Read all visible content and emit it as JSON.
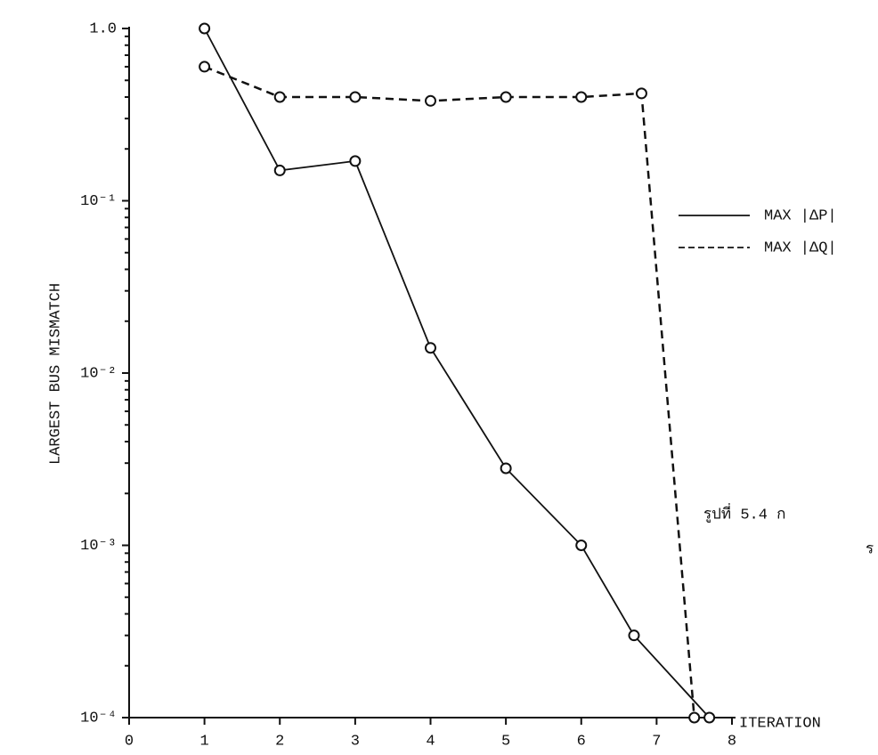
{
  "chart_data": {
    "type": "line",
    "x_label": "ITERATION",
    "y_label": "LARGEST BUS MISMATCH",
    "log_y": true,
    "xlim": [
      0,
      8
    ],
    "xticks": [
      0,
      1,
      2,
      3,
      4,
      5,
      6,
      7,
      8
    ],
    "ylim": [
      0.0001,
      1
    ],
    "yticks": [
      {
        "value": 0.0001,
        "label": "10⁻⁴"
      },
      {
        "value": 0.001,
        "label": "10⁻³"
      },
      {
        "value": 0.01,
        "label": "10⁻²"
      },
      {
        "value": 0.1,
        "label": "10⁻¹"
      },
      {
        "value": 1,
        "label": "1.0"
      }
    ],
    "series": [
      {
        "name": "MAX |ΔP|",
        "color": "#111111",
        "dash": "solid",
        "x": [
          1,
          2,
          3,
          4,
          5,
          6,
          6.7,
          7.7
        ],
        "values": [
          1,
          0.15,
          0.17,
          0.014,
          0.0028,
          0.001,
          0.0003,
          0.0001
        ]
      },
      {
        "name": "MAX |ΔQ|",
        "color": "#111111",
        "dash": "dashed",
        "x": [
          1,
          2,
          3,
          4,
          5,
          6,
          6.8,
          7.5
        ],
        "values": [
          0.6,
          0.4,
          0.4,
          0.38,
          0.4,
          0.4,
          0.42,
          0.0001
        ]
      }
    ],
    "annotations": [
      "รูปที่ 5.4   ก",
      "ร"
    ]
  }
}
